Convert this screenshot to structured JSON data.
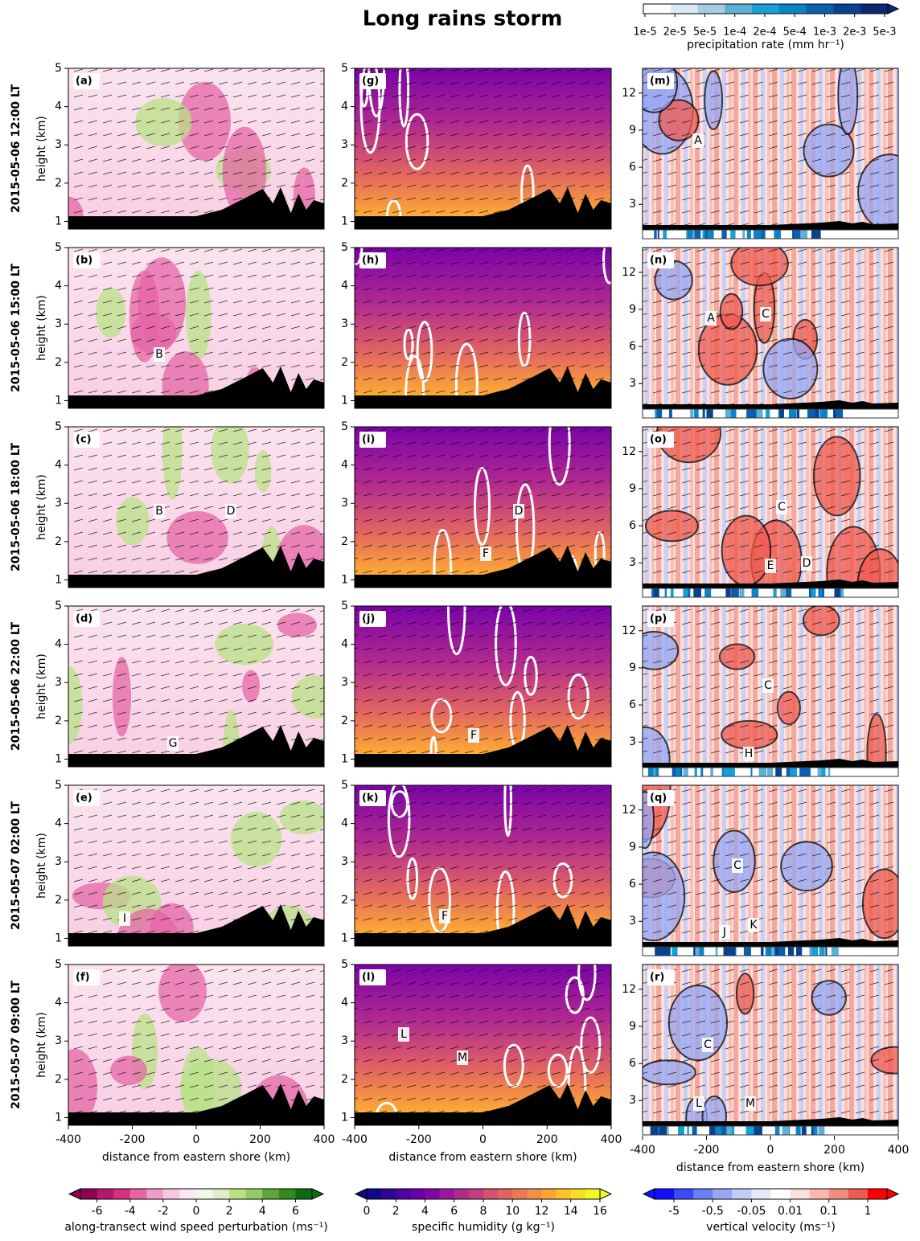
{
  "title": "Long rains storm",
  "rows": [
    "2015-05-06 12:00 LT",
    "2015-05-06 15:00 LT",
    "2015-05-06 18:00 LT",
    "2015-05-06 22:00 LT",
    "2015-05-07 02:00 LT",
    "2015-05-07 09:00 LT"
  ],
  "columns": [
    {
      "type": "contour",
      "ylabel": "height (km)",
      "ylim": [
        0.8,
        5
      ],
      "yticks": [
        1,
        2,
        3,
        4,
        5
      ],
      "xlim": [
        -400,
        400
      ],
      "xticks": [
        -400,
        -200,
        0,
        200,
        400
      ],
      "xlabel": "distance from eastern shore (km)",
      "panels": [
        {
          "label": "(a)",
          "annotations": []
        },
        {
          "label": "(b)",
          "annotations": [
            "B"
          ]
        },
        {
          "label": "(c)",
          "annotations": [
            "B",
            "D"
          ]
        },
        {
          "label": "(d)",
          "annotations": [
            "G"
          ]
        },
        {
          "label": "(e)",
          "annotations": [
            "I"
          ]
        },
        {
          "label": "(f)",
          "annotations": []
        }
      ]
    },
    {
      "type": "contour",
      "ylim": [
        0.8,
        5
      ],
      "yticks": [
        1,
        2,
        3,
        4,
        5
      ],
      "xlim": [
        -400,
        400
      ],
      "xticks": [
        -400,
        -200,
        0,
        200,
        400
      ],
      "xlabel": "distance from eastern shore (km)",
      "panels": [
        {
          "label": "(g)",
          "annotations": []
        },
        {
          "label": "(h)",
          "annotations": []
        },
        {
          "label": "(i)",
          "annotations": [
            "D",
            "F"
          ]
        },
        {
          "label": "(j)",
          "annotations": [
            "F"
          ]
        },
        {
          "label": "(k)",
          "annotations": [
            "F"
          ]
        },
        {
          "label": "(l)",
          "annotations": [
            "L",
            "M"
          ]
        }
      ]
    },
    {
      "type": "contour",
      "ylim": [
        1,
        14
      ],
      "yticks": [
        3,
        6,
        9,
        12
      ],
      "xlim": [
        -400,
        400
      ],
      "xticks": [
        -400,
        -200,
        0,
        200,
        400
      ],
      "xlabel": "distance from eastern shore (km)",
      "panels": [
        {
          "label": "(m)",
          "annotations": [
            "A"
          ]
        },
        {
          "label": "(n)",
          "annotations": [
            "A",
            "C"
          ]
        },
        {
          "label": "(o)",
          "annotations": [
            "C",
            "E",
            "D"
          ]
        },
        {
          "label": "(p)",
          "annotations": [
            "C",
            "H"
          ]
        },
        {
          "label": "(q)",
          "annotations": [
            "C",
            "J",
            "K"
          ]
        },
        {
          "label": "(r)",
          "annotations": [
            "C",
            "L",
            "M"
          ]
        }
      ]
    }
  ],
  "colorbars": [
    {
      "label": "along-transect wind speed perturbation (ms⁻¹)",
      "lim": [
        -7,
        7
      ],
      "ticks": [
        -6,
        -4,
        -2,
        0,
        2,
        4,
        6
      ],
      "colors": [
        "#8e0152",
        "#b4176f",
        "#d6307f",
        "#e565a5",
        "#f19bc8",
        "#f8c8e2",
        "#fde6f1",
        "#f2f8e6",
        "#dcefc5",
        "#b8e186",
        "#93cc63",
        "#5ea534",
        "#33891a",
        "#0f6b0f"
      ]
    },
    {
      "label": "specific humidity (g kg⁻¹)",
      "lim": [
        0,
        16
      ],
      "ticks": [
        0,
        2,
        4,
        6,
        8,
        10,
        12,
        14,
        16
      ],
      "colors": [
        "#0d0887",
        "#330597",
        "#5002a2",
        "#6a00a8",
        "#8405a7",
        "#9c179e",
        "#b12a90",
        "#c33d80",
        "#d35171",
        "#e16462",
        "#ed7953",
        "#f68f44",
        "#fca636",
        "#fdc328",
        "#f8df25",
        "#f0f921"
      ]
    },
    {
      "label": "vertical velocity (ms⁻¹)",
      "ticks": [
        -5,
        -0.5,
        -0.05,
        0.01,
        0.1,
        1
      ],
      "colors": [
        "#1010ff",
        "#3a4cf5",
        "#6a7ff5",
        "#97a7f5",
        "#c2cdf8",
        "#e4e8fb",
        "#ffffff",
        "#fde0dc",
        "#f9b8ae",
        "#f48c7f",
        "#ef5a4f",
        "#ff0000"
      ]
    }
  ],
  "precip_colorbar": {
    "label": "precipitation rate (mm hr⁻¹)",
    "ticks": [
      {
        "value": 1e-05,
        "label": "1e-5"
      },
      {
        "value": 2e-05,
        "label": "2e-5"
      },
      {
        "value": 5e-05,
        "label": "5e-5"
      },
      {
        "value": 0.0001,
        "label": "1e-4"
      },
      {
        "value": 0.0002,
        "label": "2e-4"
      },
      {
        "value": 0.0005,
        "label": "5e-4"
      },
      {
        "value": 0.001,
        "label": "1e-3"
      },
      {
        "value": 0.002,
        "label": "2e-3"
      },
      {
        "value": 0.005,
        "label": "5e-3"
      }
    ],
    "colors": [
      "#ffffff",
      "#dceaf6",
      "#a7cde3",
      "#5fb0d6",
      "#16a0d6",
      "#0a84c6",
      "#0a5fae",
      "#08428f",
      "#0b2870"
    ]
  }
}
